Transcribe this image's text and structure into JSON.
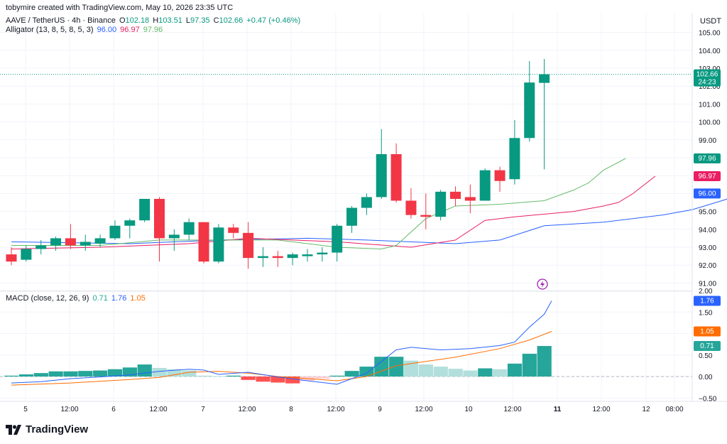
{
  "attribution": "tobymire created with TradingView.com, May 10, 2026 23:35 UTC",
  "brand": "TradingView",
  "legend": {
    "symbol": "AAVE / TetherUS · 4h · Binance",
    "o_label": "O",
    "o": "102.18",
    "h_label": "H",
    "h": "103.51",
    "l_label": "L",
    "l": "97.35",
    "c_label": "C",
    "c": "102.66",
    "change": "+0.47 (+0.46%)",
    "alligator_label": "Alligator (13, 8, 5, 8, 5, 3)",
    "alligator_jaw": "96.00",
    "alligator_teeth": "96.97",
    "alligator_lips": "97.96",
    "macd_label": "MACD (close, 12, 26, 9)",
    "macd_hist": "0.71",
    "macd_line": "1.76",
    "macd_signal": "1.05"
  },
  "currency": "USDT",
  "price_badge": {
    "value": "102.66",
    "countdown": "24:23"
  },
  "colors": {
    "up": "#089981",
    "down": "#F23645",
    "jaw": "#2962FF",
    "teeth": "#E91E63",
    "lips": "#66BB6A",
    "macd": "#2962FF",
    "signal": "#FF6D00",
    "hist_up_strong": "#26A69A",
    "hist_up_weak": "#B2DFDB",
    "hist_down_strong": "#FF5252",
    "hist_down_weak": "#FFCDD2"
  },
  "chart_data": {
    "type": "candlestick",
    "price_axis": {
      "ticks": [
        "91.00",
        "92.00",
        "93.00",
        "94.00",
        "95.00",
        "96.00",
        "97.00",
        "98.00",
        "99.00",
        "100.00",
        "101.00",
        "102.00",
        "103.00",
        "104.00",
        "105.00"
      ]
    },
    "macd_axis": {
      "ticks": [
        "−0.50",
        "0.00",
        "0.50",
        "1.00",
        "1.50",
        "2.00"
      ]
    },
    "x_ticks": [
      "5",
      "12:00",
      "6",
      "12:00",
      "7",
      "12:00",
      "8",
      "12:00",
      "9",
      "12:00",
      "10",
      "12:00",
      "11",
      "12:00",
      "12",
      "08:00"
    ],
    "candles": [
      {
        "o": 92.6,
        "h": 93.0,
        "l": 92.0,
        "c": 92.2
      },
      {
        "o": 92.3,
        "h": 93.1,
        "l": 92.2,
        "c": 92.9
      },
      {
        "o": 92.9,
        "h": 93.4,
        "l": 92.6,
        "c": 93.1
      },
      {
        "o": 93.1,
        "h": 93.6,
        "l": 92.8,
        "c": 93.5
      },
      {
        "o": 93.5,
        "h": 94.3,
        "l": 92.9,
        "c": 93.1
      },
      {
        "o": 93.1,
        "h": 93.7,
        "l": 92.8,
        "c": 93.3
      },
      {
        "o": 93.2,
        "h": 93.7,
        "l": 93.0,
        "c": 93.5
      },
      {
        "o": 93.5,
        "h": 94.5,
        "l": 93.4,
        "c": 94.2
      },
      {
        "o": 94.2,
        "h": 94.6,
        "l": 93.5,
        "c": 94.5
      },
      {
        "o": 94.5,
        "h": 95.7,
        "l": 94.4,
        "c": 95.7
      },
      {
        "o": 95.7,
        "h": 95.8,
        "l": 92.2,
        "c": 93.5
      },
      {
        "o": 93.5,
        "h": 94.0,
        "l": 92.8,
        "c": 93.7
      },
      {
        "o": 93.7,
        "h": 94.6,
        "l": 93.4,
        "c": 94.4
      },
      {
        "o": 94.4,
        "h": 94.4,
        "l": 92.1,
        "c": 92.2
      },
      {
        "o": 92.2,
        "h": 94.3,
        "l": 92.1,
        "c": 94.1
      },
      {
        "o": 94.1,
        "h": 94.3,
        "l": 93.5,
        "c": 93.8
      },
      {
        "o": 93.8,
        "h": 94.4,
        "l": 91.8,
        "c": 92.4
      },
      {
        "o": 92.4,
        "h": 93.0,
        "l": 91.9,
        "c": 92.5
      },
      {
        "o": 92.5,
        "h": 92.8,
        "l": 91.9,
        "c": 92.4
      },
      {
        "o": 92.4,
        "h": 92.7,
        "l": 92.0,
        "c": 92.6
      },
      {
        "o": 92.5,
        "h": 92.9,
        "l": 92.2,
        "c": 92.6
      },
      {
        "o": 92.6,
        "h": 93.0,
        "l": 92.2,
        "c": 92.7
      },
      {
        "o": 92.7,
        "h": 94.3,
        "l": 92.2,
        "c": 94.2
      },
      {
        "o": 94.2,
        "h": 95.3,
        "l": 93.8,
        "c": 95.2
      },
      {
        "o": 95.2,
        "h": 96.0,
        "l": 94.8,
        "c": 95.8
      },
      {
        "o": 95.8,
        "h": 99.6,
        "l": 95.7,
        "c": 98.2
      },
      {
        "o": 98.2,
        "h": 98.8,
        "l": 95.5,
        "c": 95.6
      },
      {
        "o": 95.6,
        "h": 96.3,
        "l": 94.6,
        "c": 94.8
      },
      {
        "o": 94.8,
        "h": 96.0,
        "l": 94.0,
        "c": 94.7
      },
      {
        "o": 94.7,
        "h": 96.2,
        "l": 94.5,
        "c": 96.1
      },
      {
        "o": 96.1,
        "h": 96.4,
        "l": 95.3,
        "c": 95.7
      },
      {
        "o": 95.8,
        "h": 96.5,
        "l": 94.9,
        "c": 95.6
      },
      {
        "o": 95.6,
        "h": 97.4,
        "l": 95.6,
        "c": 97.3
      },
      {
        "o": 97.3,
        "h": 97.5,
        "l": 96.1,
        "c": 96.7
      },
      {
        "o": 96.8,
        "h": 100.1,
        "l": 96.5,
        "c": 99.1
      },
      {
        "o": 99.1,
        "h": 103.4,
        "l": 98.9,
        "c": 102.2
      },
      {
        "o": 102.18,
        "h": 103.51,
        "l": 97.35,
        "c": 102.66
      }
    ],
    "alligator": {
      "jaw": [
        [
          0,
          93.3
        ],
        [
          8,
          93.2
        ],
        [
          14,
          93.4
        ],
        [
          20,
          93.5
        ],
        [
          24,
          93.4
        ],
        [
          30,
          93.2
        ],
        [
          33,
          93.4
        ],
        [
          36,
          94.2
        ],
        [
          40,
          94.4
        ],
        [
          44,
          94.8
        ],
        [
          46,
          95.1
        ],
        [
          48,
          95.6
        ],
        [
          49.5,
          96.0
        ]
      ],
      "teeth": [
        [
          0,
          92.9
        ],
        [
          6,
          93.0
        ],
        [
          12,
          93.2
        ],
        [
          16,
          93.5
        ],
        [
          22,
          93.3
        ],
        [
          27,
          93.0
        ],
        [
          30,
          93.4
        ],
        [
          32,
          94.5
        ],
        [
          34,
          94.7
        ],
        [
          38,
          95.0
        ],
        [
          40,
          95.3
        ],
        [
          41,
          95.5
        ],
        [
          42,
          96.0
        ],
        [
          43.5,
          96.97
        ]
      ],
      "lips": [
        [
          0,
          93.1
        ],
        [
          6,
          93.1
        ],
        [
          10,
          93.4
        ],
        [
          14,
          93.4
        ],
        [
          18,
          93.4
        ],
        [
          22,
          93.0
        ],
        [
          25,
          92.9
        ],
        [
          26,
          93.1
        ],
        [
          28,
          94.6
        ],
        [
          30,
          95.3
        ],
        [
          33,
          95.4
        ],
        [
          36,
          95.6
        ],
        [
          38,
          96.2
        ],
        [
          39,
          96.6
        ],
        [
          40,
          97.3
        ],
        [
          41.5,
          97.96
        ]
      ]
    },
    "macd": {
      "histogram": [
        0.02,
        0.05,
        0.08,
        0.12,
        0.12,
        0.13,
        0.14,
        0.17,
        0.21,
        0.28,
        0.2,
        0.17,
        0.14,
        0.02,
        0.01,
        0.02,
        -0.08,
        -0.12,
        -0.14,
        -0.16,
        -0.1,
        -0.05,
        0.02,
        0.13,
        0.23,
        0.46,
        0.46,
        0.37,
        0.28,
        0.23,
        0.18,
        0.14,
        0.19,
        0.17,
        0.3,
        0.53,
        0.71
      ],
      "macd_line": [
        [
          0,
          -0.15
        ],
        [
          2,
          -0.12
        ],
        [
          4,
          -0.05
        ],
        [
          6,
          -0.01
        ],
        [
          8,
          0.04
        ],
        [
          10,
          0.12
        ],
        [
          12,
          0.17
        ],
        [
          13,
          0.15
        ],
        [
          14,
          0.05
        ],
        [
          16,
          0.1
        ],
        [
          18,
          -0.01
        ],
        [
          20,
          -0.1
        ],
        [
          22,
          -0.18
        ],
        [
          23,
          -0.05
        ],
        [
          24,
          0.08
        ],
        [
          25,
          0.35
        ],
        [
          26,
          0.62
        ],
        [
          27,
          0.68
        ],
        [
          29,
          0.62
        ],
        [
          31,
          0.65
        ],
        [
          33,
          0.72
        ],
        [
          34,
          0.8
        ],
        [
          35,
          1.15
        ],
        [
          36,
          1.45
        ],
        [
          36.5,
          1.76
        ]
      ],
      "signal_line": [
        [
          0,
          -0.2
        ],
        [
          4,
          -0.15
        ],
        [
          8,
          -0.07
        ],
        [
          10,
          -0.02
        ],
        [
          12,
          0.1
        ],
        [
          14,
          0.12
        ],
        [
          16,
          0.08
        ],
        [
          18,
          0.0
        ],
        [
          22,
          -0.1
        ],
        [
          24,
          0.0
        ],
        [
          26,
          0.25
        ],
        [
          28,
          0.35
        ],
        [
          30,
          0.45
        ],
        [
          33,
          0.65
        ],
        [
          35,
          0.85
        ],
        [
          36.5,
          1.05
        ]
      ]
    }
  }
}
